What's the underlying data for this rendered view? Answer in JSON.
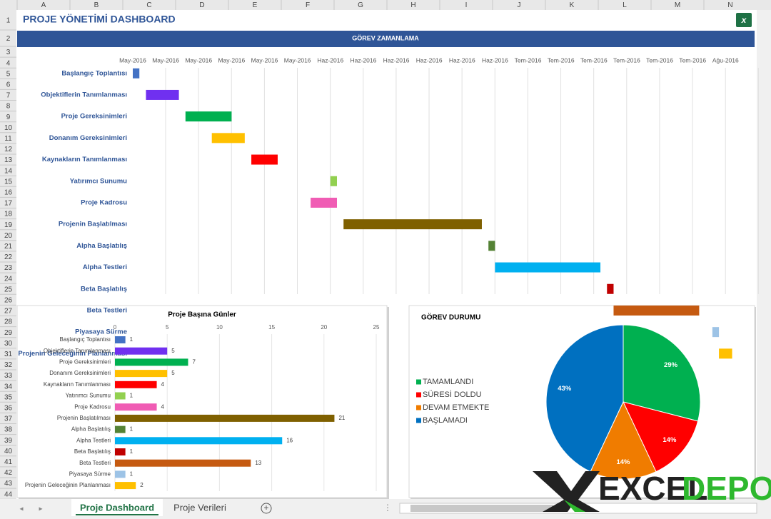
{
  "sheet": {
    "columns": [
      "A",
      "B",
      "C",
      "D",
      "E",
      "F",
      "G",
      "H",
      "I",
      "J",
      "K",
      "L",
      "M",
      "N"
    ],
    "rows": [
      1,
      2,
      3,
      4,
      5,
      6,
      7,
      8,
      9,
      10,
      11,
      12,
      13,
      14,
      15,
      16,
      17,
      18,
      19,
      20,
      21,
      22,
      23,
      24,
      25,
      26,
      27,
      28,
      29,
      30,
      31,
      32,
      33,
      34,
      35,
      36,
      37,
      38,
      39,
      40,
      41,
      42,
      43,
      44
    ]
  },
  "title": "PROJE YÖNETİMİ DASHBOARD",
  "banner": "GÖREV ZAMANLAMA",
  "chart_data": [
    {
      "type": "gantt",
      "categories": [
        "Başlangıç Toplantısı",
        "Objektiflerin Tanımlanması",
        "Proje Gereksinimleri",
        "Donanım Gereksinimleri",
        "Kaynakların Tanımlanması",
        "Yatırımcı Sunumu",
        "Proje Kadrosu",
        "Projenin Başlatılması",
        "Alpha Başlatılış",
        "Alpha Testleri",
        "Beta Başlatılış",
        "Beta Testleri",
        "Piyasaya Sürme",
        "Projenin Geleceğinin Planlanması"
      ],
      "starts": [
        0,
        2,
        8,
        12,
        18,
        30,
        27,
        32,
        54,
        55,
        72,
        73,
        88,
        89
      ],
      "values": [
        1,
        5,
        7,
        5,
        4,
        1,
        4,
        21,
        1,
        16,
        1,
        13,
        1,
        2
      ],
      "colors": [
        "#4472c4",
        "#7030f0",
        "#00b050",
        "#ffc000",
        "#ff0000",
        "#92d050",
        "#f05cb4",
        "#7f6000",
        "#548235",
        "#00b0f0",
        "#c00000",
        "#c55a11",
        "#9dc3e6",
        "#ffc000"
      ],
      "xlim": [
        0,
        93
      ],
      "xticks": [
        {
          "value": 0,
          "label": "May-2016"
        },
        {
          "value": 5,
          "label": "May-2016"
        },
        {
          "value": 10,
          "label": "May-2016"
        },
        {
          "value": 15,
          "label": "May-2016"
        },
        {
          "value": 20,
          "label": "May-2016"
        },
        {
          "value": 25,
          "label": "May-2016"
        },
        {
          "value": 30,
          "label": "Haz-2016"
        },
        {
          "value": 35,
          "label": "Haz-2016"
        },
        {
          "value": 40,
          "label": "Haz-2016"
        },
        {
          "value": 45,
          "label": "Haz-2016"
        },
        {
          "value": 50,
          "label": "Haz-2016"
        },
        {
          "value": 55,
          "label": "Haz-2016"
        },
        {
          "value": 60,
          "label": "Tem-2016"
        },
        {
          "value": 65,
          "label": "Tem-2016"
        },
        {
          "value": 70,
          "label": "Tem-2016"
        },
        {
          "value": 75,
          "label": "Tem-2016"
        },
        {
          "value": 80,
          "label": "Tem-2016"
        },
        {
          "value": 85,
          "label": "Tem-2016"
        },
        {
          "value": 90,
          "label": "Ağu-2016"
        }
      ],
      "grid": true
    },
    {
      "type": "bar",
      "title": "Proje Başına Günler",
      "categories": [
        "Başlangıç Toplantısı",
        "Objektiflerin Tanımlanması",
        "Proje Gereksinimleri",
        "Donanım Gereksinimleri",
        "Kaynakların Tanımlanması",
        "Yatırımcı Sunumu",
        "Proje Kadrosu",
        "Projenin Başlatılması",
        "Alpha Başlatılış",
        "Alpha Testleri",
        "Beta Başlatılış",
        "Beta Testleri",
        "Piyasaya Sürme",
        "Projenin Geleceğinin Planlanması"
      ],
      "values": [
        1,
        5,
        7,
        5,
        4,
        1,
        4,
        21,
        1,
        16,
        1,
        13,
        1,
        2
      ],
      "colors": [
        "#4472c4",
        "#7030f0",
        "#00b050",
        "#ffc000",
        "#ff0000",
        "#92d050",
        "#f05cb4",
        "#7f6000",
        "#548235",
        "#00b0f0",
        "#c00000",
        "#c55a11",
        "#9dc3e6",
        "#ffc000"
      ],
      "xlim": [
        0,
        25
      ],
      "xticks": [
        0,
        5,
        10,
        15,
        20,
        25
      ],
      "grid": true
    },
    {
      "type": "pie",
      "title": "GÖREV DURUMU",
      "categories": [
        "TAMAMLANDI",
        "SÜRESİ DOLDU",
        "DEVAM ETMEKTE",
        "BAŞLAMADI"
      ],
      "values": [
        29,
        14,
        14,
        43
      ],
      "value_labels": [
        "29%",
        "14%",
        "14%",
        "43%"
      ],
      "colors": [
        "#00b050",
        "#ff0000",
        "#f07c00",
        "#0070c0"
      ],
      "legend": "left"
    }
  ],
  "tabs": [
    "Proje Dashboard",
    "Proje Verileri"
  ],
  "brand": {
    "left": "EXCEL",
    "right": "DEPO"
  }
}
